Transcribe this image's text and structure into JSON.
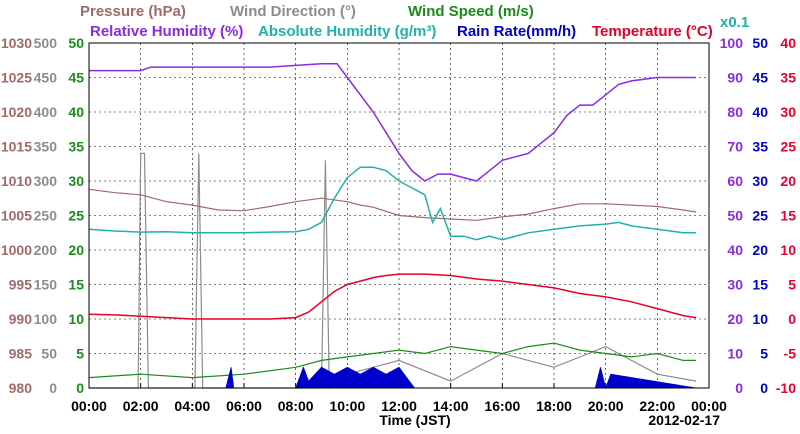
{
  "chart_data": {
    "type": "line",
    "date": "2012-02-17",
    "xlabel": "Time (JST)",
    "x_ticks": [
      "00:00",
      "02:00",
      "04:00",
      "06:00",
      "08:00",
      "10:00",
      "12:00",
      "14:00",
      "16:00",
      "18:00",
      "20:00",
      "22:00",
      "00:00"
    ],
    "x_range_hours": [
      0,
      24
    ],
    "grid": true,
    "titles": [
      {
        "text": "Pressure (hPa)",
        "color": "#a06a6a"
      },
      {
        "text": "Wind Direction (°)",
        "color": "#8c8c8c"
      },
      {
        "text": "Wind Speed (m/s)",
        "color": "#1a8c1a"
      },
      {
        "text": "Relative Humidity (%)",
        "color": "#8a2be2"
      },
      {
        "text": "Absolute Humidity (g/m³)",
        "color": "#20b2aa"
      },
      {
        "text": "x0.1",
        "color": "#20b2aa"
      },
      {
        "text": "Rain Rate(mm/h)",
        "color": "#0000cd"
      },
      {
        "text": "Temperature (°C)",
        "color": "#e8002a"
      }
    ],
    "axes": {
      "pressure": {
        "label": "Pressure (hPa)",
        "range": [
          980,
          1030
        ],
        "ticks": [
          "1030",
          "1025",
          "1020",
          "1015",
          "1010",
          "1005",
          "1000",
          "995",
          "990",
          "985",
          "980"
        ],
        "color": "#a06a6a"
      },
      "wind_direction": {
        "label": "Wind Direction (°)",
        "range": [
          0,
          500
        ],
        "ticks": [
          "500",
          "450",
          "400",
          "350",
          "300",
          "250",
          "200",
          "150",
          "100",
          "50",
          "0"
        ],
        "color": "#8c8c8c"
      },
      "wind_speed": {
        "label": "Wind Speed (m/s)",
        "range": [
          0,
          50
        ],
        "ticks": [
          "50",
          "45",
          "40",
          "35",
          "30",
          "25",
          "20",
          "15",
          "10",
          "5",
          "0"
        ],
        "color": "#1a8c1a"
      },
      "relative_humidity": {
        "label": "Relative Humidity (%)",
        "range": [
          0,
          100
        ],
        "ticks": [
          "100",
          "90",
          "80",
          "70",
          "60",
          "50",
          "40",
          "30",
          "20",
          "10",
          "0"
        ],
        "color": "#8a2be2"
      },
      "rain_rate": {
        "label": "Rain Rate(mm/h)",
        "range": [
          0,
          50
        ],
        "ticks": [
          "50",
          "45",
          "40",
          "35",
          "30",
          "25",
          "20",
          "15",
          "10",
          "5",
          "0"
        ],
        "color": "#0000cd"
      },
      "temperature": {
        "label": "Temperature (°C)",
        "range": [
          -10,
          40
        ],
        "ticks": [
          "40",
          "35",
          "30",
          "25",
          "20",
          "15",
          "10",
          "5",
          "0",
          "-5",
          "-10"
        ],
        "color": "#e8002a"
      }
    },
    "series": [
      {
        "name": "Pressure (hPa)",
        "axis": "pressure",
        "color": "#a06a6a",
        "x": [
          0,
          1,
          2,
          3,
          4,
          5,
          6,
          7,
          8,
          9,
          10,
          10.5,
          11,
          12,
          13,
          14,
          15,
          16,
          17,
          18,
          19,
          20,
          21,
          22,
          23,
          23.5
        ],
        "y": [
          1008.8,
          1008.3,
          1008,
          1007,
          1006.5,
          1005.8,
          1005.7,
          1006.3,
          1007,
          1007.5,
          1007,
          1006.5,
          1006.2,
          1005,
          1004.7,
          1004.5,
          1004.3,
          1004.8,
          1005.2,
          1006,
          1006.7,
          1006.7,
          1006.5,
          1006.3,
          1005.8,
          1005.5
        ]
      },
      {
        "name": "Absolute Humidity (g/m³) x0.1",
        "axis": "relative_humidity",
        "color": "#20b2aa",
        "x": [
          0,
          1,
          2,
          3,
          4,
          5,
          6,
          7,
          8,
          8.5,
          9,
          9.5,
          10,
          10.5,
          11,
          11.5,
          12,
          12.5,
          13,
          13.3,
          13.6,
          14,
          14.5,
          15,
          15.5,
          16,
          17,
          18,
          19,
          20,
          20.5,
          21,
          22,
          23,
          23.5
        ],
        "y": [
          46,
          45.5,
          45.2,
          45.3,
          45,
          45,
          45,
          45.2,
          45.3,
          46,
          48,
          55,
          61,
          64,
          64,
          63,
          60,
          58,
          56,
          48,
          52,
          44,
          44,
          43,
          44,
          43,
          45,
          46,
          47,
          47.5,
          48,
          47,
          46,
          45,
          45
        ]
      },
      {
        "name": "Relative Humidity (%)",
        "axis": "relative_humidity",
        "color": "#8a2be2",
        "x": [
          0,
          1,
          2,
          2.4,
          3,
          4,
          5,
          6,
          7,
          8,
          9,
          9.6,
          10,
          10.5,
          11,
          11.5,
          12,
          12.5,
          13,
          13.5,
          14,
          14.5,
          15,
          15.5,
          16,
          16.5,
          17,
          17.5,
          18,
          18.5,
          19,
          19.5,
          20,
          20.5,
          21,
          22,
          23,
          23.5
        ],
        "y": [
          92,
          92,
          92,
          93,
          93,
          93,
          93,
          93,
          93,
          93.5,
          94,
          94,
          90,
          85,
          80,
          74,
          68,
          63,
          60,
          62,
          62,
          61,
          60,
          63,
          66,
          67,
          68,
          71,
          74,
          79,
          82,
          82,
          85,
          88,
          89,
          90,
          90,
          90
        ]
      },
      {
        "name": "Temperature (°C)",
        "axis": "temperature",
        "color": "#e8002a",
        "x": [
          0,
          1,
          2,
          3,
          4,
          5,
          6,
          7,
          8,
          8.5,
          9,
          9.5,
          10,
          10.5,
          11,
          11.5,
          12,
          12.5,
          13,
          14,
          15,
          16,
          17,
          18,
          19,
          20,
          21,
          22,
          23,
          23.5
        ],
        "y": [
          0.7,
          0.6,
          0.4,
          0.2,
          0,
          0,
          0,
          0,
          0.2,
          1,
          2.5,
          4,
          5,
          5.5,
          6,
          6.3,
          6.5,
          6.5,
          6.5,
          6.3,
          5.8,
          5.5,
          5,
          4.5,
          3.7,
          3.2,
          2.5,
          1.5,
          0.5,
          0.2
        ]
      },
      {
        "name": "Wind Direction (°)",
        "axis": "wind_direction",
        "color": "#8c8c8c",
        "x": [
          0,
          1.9,
          2.0,
          2.15,
          2.3,
          4.1,
          4.25,
          4.4,
          9.0,
          9.15,
          9.3,
          10,
          12,
          14,
          16,
          18,
          20,
          22,
          23.5
        ],
        "y": [
          0,
          0,
          340,
          340,
          0,
          0,
          340,
          0,
          0,
          330,
          0,
          20,
          40,
          10,
          50,
          30,
          60,
          20,
          10
        ]
      },
      {
        "name": "Wind Speed (m/s)",
        "axis": "wind_speed",
        "color": "#1a8c1a",
        "x": [
          0,
          2,
          4,
          6,
          8,
          9,
          10,
          11,
          12,
          13,
          14,
          15,
          16,
          17,
          18,
          19,
          20,
          21,
          22,
          23,
          23.5
        ],
        "y": [
          1.5,
          2,
          1.5,
          2,
          3,
          4,
          4.5,
          5,
          5.5,
          5,
          6,
          5.5,
          5,
          6,
          6.5,
          5.5,
          5,
          4.5,
          5,
          4,
          4
        ]
      },
      {
        "name": "Rain Rate(mm/h)",
        "axis": "rain_rate",
        "color": "#0000cd",
        "x": [
          0,
          5.3,
          5.5,
          5.6,
          8.0,
          8.3,
          8.5,
          9.0,
          9.5,
          10.0,
          10.5,
          11.0,
          11.5,
          12.0,
          12.4,
          12.6,
          19.6,
          19.8,
          20.0,
          20.2,
          23.5
        ],
        "y": [
          0,
          0,
          3,
          0,
          0,
          3,
          1,
          3,
          2,
          3,
          2,
          3,
          2,
          3,
          1,
          0,
          0,
          3,
          0,
          2,
          0
        ]
      }
    ]
  }
}
